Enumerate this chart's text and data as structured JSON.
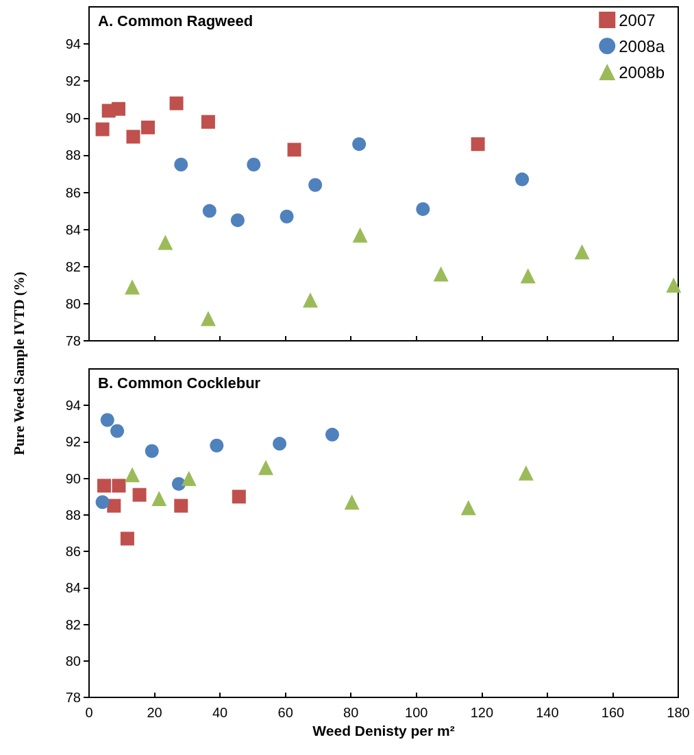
{
  "chart_data": [
    {
      "type": "scatter",
      "title": "A. Common Ragweed",
      "ylabel": "Pure Weed Sample IVTD (%)",
      "xlim": [
        0,
        180
      ],
      "xticks": [
        0,
        20,
        40,
        60,
        80,
        100,
        120,
        140,
        160,
        180
      ],
      "ylim": [
        78,
        96
      ],
      "yticks": [
        78,
        80,
        82,
        84,
        86,
        88,
        90,
        92,
        94
      ],
      "tick_labels": "y",
      "legend": "top right",
      "grid": false,
      "series": [
        {
          "name": "2007",
          "color": "#c0504d",
          "marker": "square",
          "x": [
            4.1,
            6.0,
            9.0,
            13.5,
            18.0,
            26.7,
            36.4,
            62.7,
            118.8
          ],
          "values": [
            89.4,
            90.4,
            90.5,
            89.0,
            89.5,
            90.8,
            89.8,
            88.3,
            88.6
          ]
        },
        {
          "name": "2008a",
          "color": "#4f81bd",
          "marker": "circle",
          "x": [
            28.1,
            36.8,
            45.4,
            50.3,
            60.4,
            69.1,
            82.5,
            102.0,
            132.3
          ],
          "values": [
            87.5,
            85.0,
            84.5,
            87.5,
            84.7,
            86.4,
            88.6,
            85.1,
            86.7
          ]
        },
        {
          "name": "2008b",
          "color": "#9bbb59",
          "marker": "triangle",
          "x": [
            13.2,
            23.3,
            36.4,
            67.6,
            82.8,
            107.5,
            134.1,
            150.6,
            178.6
          ],
          "values": [
            80.9,
            83.3,
            79.2,
            80.2,
            83.7,
            81.6,
            81.5,
            82.8,
            81.0
          ]
        }
      ]
    },
    {
      "type": "scatter",
      "title": "B. Common Cocklebur",
      "xlabel": "Weed Denisty per m²",
      "xlim": [
        0,
        180
      ],
      "xticks": [
        0,
        20,
        40,
        60,
        80,
        100,
        120,
        140,
        160,
        180
      ],
      "ylim": [
        78,
        96
      ],
      "yticks": [
        78,
        80,
        82,
        84,
        86,
        88,
        90,
        92,
        94
      ],
      "grid": false,
      "series": [
        {
          "color": "#c0504d",
          "marker": "square",
          "x": [
            4.6,
            7.6,
            9.1,
            11.7,
            15.4,
            28.1,
            45.8
          ],
          "values": [
            89.6,
            88.5,
            89.6,
            86.7,
            89.1,
            88.5,
            89.0
          ]
        },
        {
          "color": "#4f81bd",
          "marker": "circle",
          "x": [
            4.1,
            5.6,
            8.6,
            19.2,
            27.4,
            39.0,
            58.2,
            74.3
          ],
          "values": [
            88.7,
            93.2,
            92.6,
            91.5,
            89.7,
            91.8,
            91.9,
            92.4
          ]
        },
        {
          "color": "#9bbb59",
          "marker": "triangle",
          "x": [
            13.2,
            21.4,
            30.5,
            54.0,
            80.3,
            115.9,
            133.5
          ],
          "values": [
            90.2,
            88.9,
            90.0,
            90.6,
            88.7,
            88.4,
            90.3
          ]
        }
      ]
    }
  ]
}
